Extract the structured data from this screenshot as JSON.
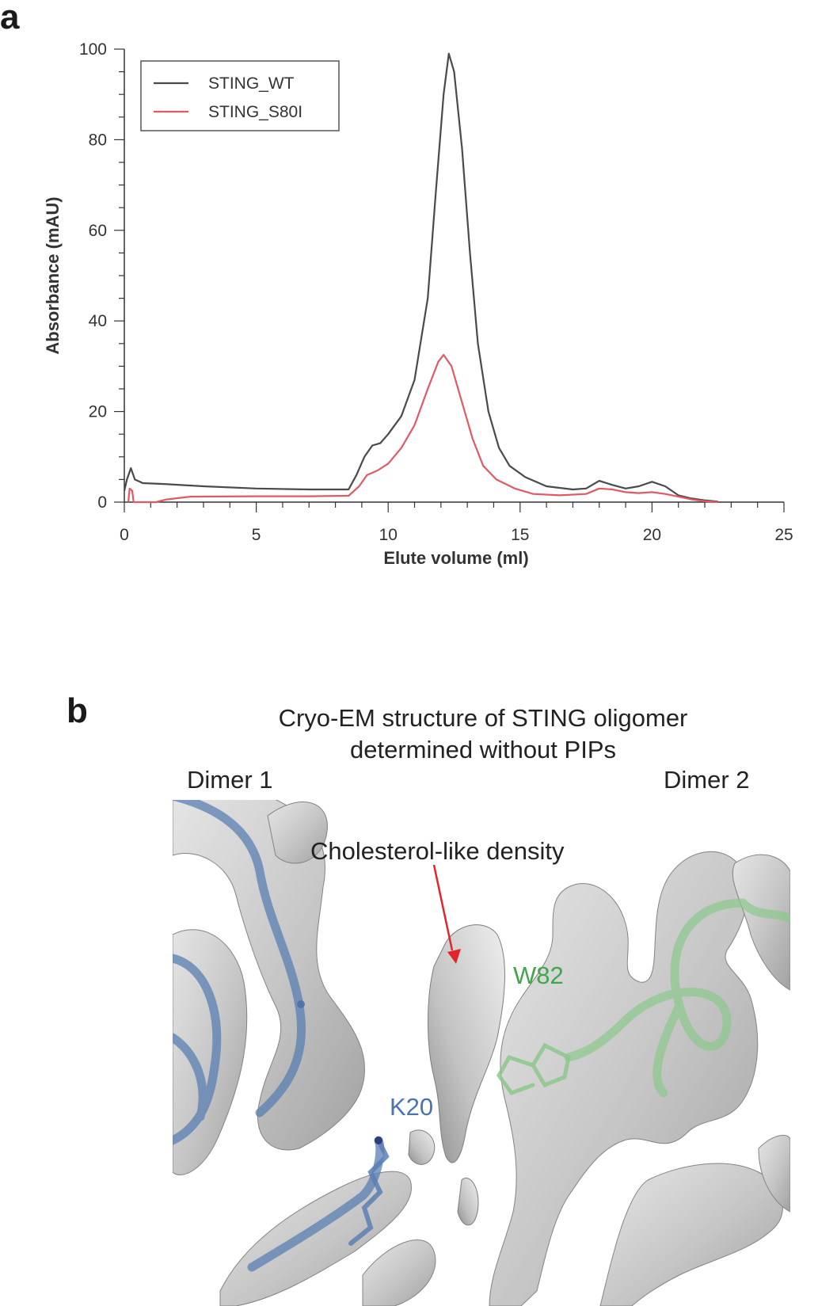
{
  "panel_a": {
    "letter": "a"
  },
  "panel_b": {
    "letter": "b",
    "title_line1": "Cryo-EM structure of STING oligomer",
    "title_line2": "determined without PIPs",
    "dimer1_label": "Dimer 1",
    "dimer2_label": "Dimer 2",
    "annotation": "Cholesterol-like density",
    "residue_k": "K20",
    "residue_w": "W82",
    "colors": {
      "dimer1_backbone": "#5b7fb3",
      "dimer2_backbone": "#8cc88c",
      "arrow": "#e0262b",
      "density": "#c9c9c9"
    }
  },
  "chart_data": {
    "type": "line",
    "xlabel": "Elute volume (ml)",
    "ylabel": "Absorbance (mAU)",
    "xlim": [
      0,
      25
    ],
    "ylim": [
      0,
      100
    ],
    "xticks": [
      0,
      5,
      10,
      15,
      20,
      25
    ],
    "yticks": [
      0,
      20,
      40,
      60,
      80,
      100
    ],
    "legend_position": "top-left",
    "grid": false,
    "series": [
      {
        "name": "STING_WT",
        "color": "#4a4a4a",
        "points": [
          [
            0,
            2.5
          ],
          [
            0.1,
            5.0
          ],
          [
            0.25,
            7.5
          ],
          [
            0.4,
            5.0
          ],
          [
            0.7,
            4.2
          ],
          [
            1.5,
            4.0
          ],
          [
            3,
            3.5
          ],
          [
            5,
            3.0
          ],
          [
            7,
            2.8
          ],
          [
            8.5,
            2.8
          ],
          [
            8.8,
            6
          ],
          [
            9.1,
            10
          ],
          [
            9.4,
            12.5
          ],
          [
            9.7,
            13
          ],
          [
            10,
            15
          ],
          [
            10.5,
            19
          ],
          [
            11,
            27
          ],
          [
            11.5,
            45
          ],
          [
            11.8,
            68
          ],
          [
            12.1,
            90
          ],
          [
            12.3,
            99
          ],
          [
            12.5,
            95
          ],
          [
            12.8,
            78
          ],
          [
            13.1,
            55
          ],
          [
            13.4,
            35
          ],
          [
            13.8,
            20
          ],
          [
            14.2,
            12
          ],
          [
            14.6,
            8
          ],
          [
            15.2,
            5.5
          ],
          [
            16,
            3.5
          ],
          [
            17,
            2.8
          ],
          [
            17.5,
            3.0
          ],
          [
            18.0,
            4.7
          ],
          [
            18.5,
            3.8
          ],
          [
            19.0,
            3.0
          ],
          [
            19.5,
            3.5
          ],
          [
            20.0,
            4.5
          ],
          [
            20.5,
            3.5
          ],
          [
            21.0,
            1.5
          ],
          [
            21.5,
            0.8
          ],
          [
            22,
            0.4
          ],
          [
            22.5,
            0.1
          ]
        ]
      },
      {
        "name": "STING_S80I",
        "color": "#e05a66",
        "points": [
          [
            0.15,
            0
          ],
          [
            0.2,
            3.0
          ],
          [
            0.3,
            2.5
          ],
          [
            0.35,
            0
          ],
          [
            1.2,
            0
          ],
          [
            1.6,
            0.6
          ],
          [
            2.5,
            1.2
          ],
          [
            5,
            1.3
          ],
          [
            7,
            1.3
          ],
          [
            8.5,
            1.4
          ],
          [
            8.9,
            3.5
          ],
          [
            9.2,
            6
          ],
          [
            9.6,
            7
          ],
          [
            10,
            8.5
          ],
          [
            10.5,
            12
          ],
          [
            11,
            17
          ],
          [
            11.5,
            25
          ],
          [
            11.9,
            31
          ],
          [
            12.1,
            32.5
          ],
          [
            12.4,
            30
          ],
          [
            12.8,
            22
          ],
          [
            13.2,
            14
          ],
          [
            13.6,
            8
          ],
          [
            14.1,
            5
          ],
          [
            14.8,
            3.0
          ],
          [
            15.5,
            1.8
          ],
          [
            16.5,
            1.5
          ],
          [
            17.5,
            1.8
          ],
          [
            18.0,
            3.0
          ],
          [
            18.5,
            2.8
          ],
          [
            19.0,
            2.2
          ],
          [
            19.5,
            2.0
          ],
          [
            20.0,
            2.2
          ],
          [
            20.5,
            1.8
          ],
          [
            21.0,
            1.2
          ],
          [
            21.5,
            0.6
          ],
          [
            22,
            0.2
          ],
          [
            22.5,
            0
          ]
        ]
      }
    ]
  }
}
